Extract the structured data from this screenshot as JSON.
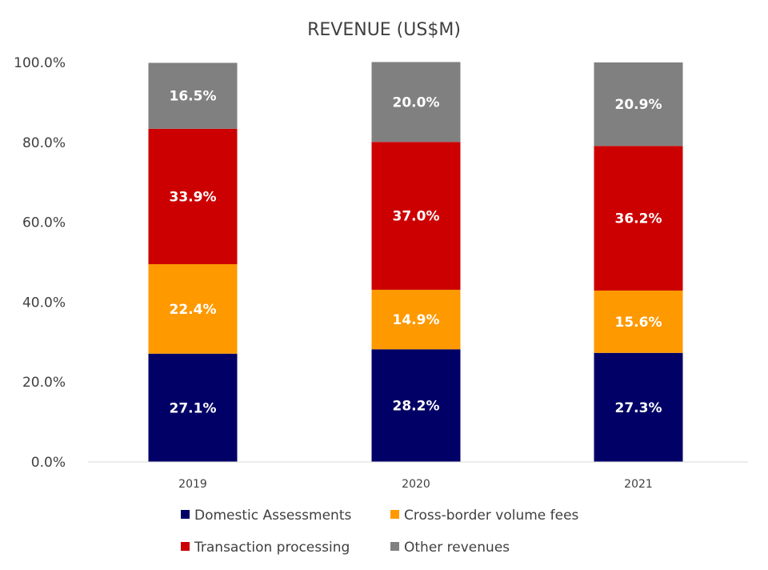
{
  "chart_data": {
    "type": "bar",
    "stacked": true,
    "title": "REVENUE (US$M)",
    "categories": [
      "2019",
      "2020",
      "2021"
    ],
    "yticks": [
      "0.0%",
      "20.0%",
      "40.0%",
      "60.0%",
      "80.0%",
      "100.0%"
    ],
    "ylim": [
      0,
      100
    ],
    "grid": false,
    "legend_position": "bottom",
    "series": [
      {
        "name": "Domestic Assessments",
        "color": "#000066",
        "values": [
          27.1,
          28.2,
          27.3
        ],
        "labels": [
          "27.1%",
          "28.2%",
          "27.3%"
        ]
      },
      {
        "name": "Cross-border volume fees",
        "color": "#FF9900",
        "values": [
          22.4,
          14.9,
          15.6
        ],
        "labels": [
          "22.4%",
          "14.9%",
          "15.6%"
        ]
      },
      {
        "name": "Transaction processing",
        "color": "#CC0000",
        "values": [
          33.9,
          37.0,
          36.2
        ],
        "labels": [
          "33.9%",
          "37.0%",
          "36.2%"
        ]
      },
      {
        "name": "Other revenues",
        "color": "#808080",
        "values": [
          16.5,
          20.0,
          20.9
        ],
        "labels": [
          "16.5%",
          "20.0%",
          "20.9%"
        ]
      }
    ]
  }
}
